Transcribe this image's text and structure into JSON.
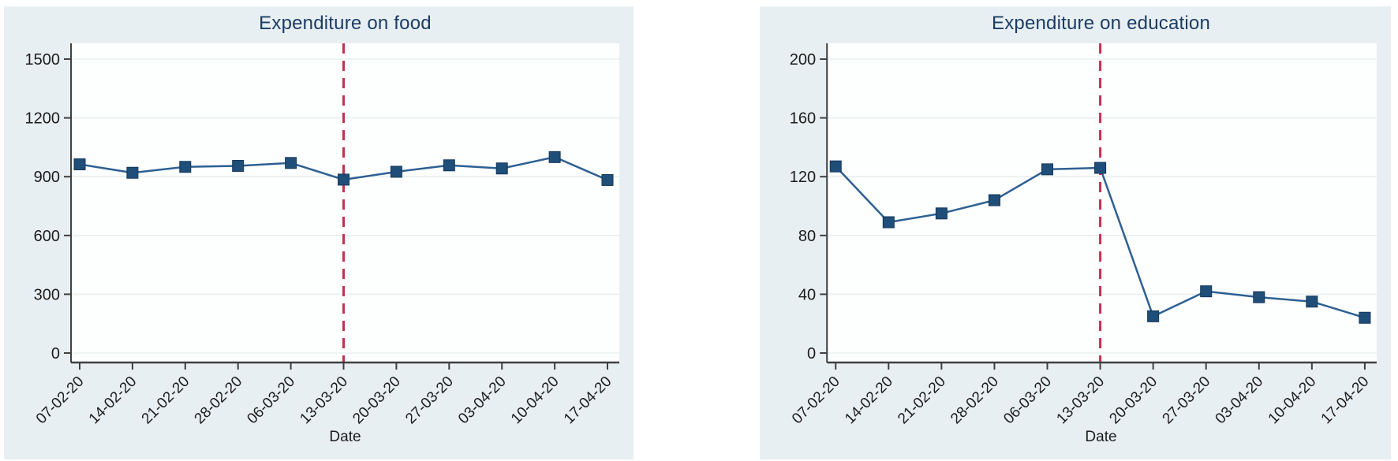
{
  "page": {
    "background": "#ffffff",
    "panel_background": "#e8eff2"
  },
  "style": {
    "line_color": "#2e6093",
    "marker_color": "#1f4e79",
    "marker_border_color": "#14375a",
    "reference_line_color": "#c13351",
    "title_color": "#1b3c63",
    "axis_color": "#3f3f3f",
    "grid_color": "#e9eff1",
    "tick_label_color": "#1c1c1c",
    "plot_background": "#fdfefe"
  },
  "chart_data": [
    {
      "type": "line",
      "title": "Expenditure on food",
      "xlabel": "Date",
      "ylabel": "",
      "categories": [
        "07-02-20",
        "14-02-20",
        "21-02-20",
        "28-02-20",
        "06-03-20",
        "13-03-20",
        "20-03-20",
        "27-03-20",
        "03-04-20",
        "10-04-20",
        "17-04-20"
      ],
      "values": [
        963,
        920,
        950,
        955,
        970,
        885,
        925,
        958,
        942,
        1000,
        883
      ],
      "yticks": [
        0,
        300,
        600,
        900,
        1200,
        1500
      ],
      "ylim": [
        0,
        1575
      ],
      "grid": true,
      "legend": "none",
      "marker": "square",
      "reference_date": "13-03-20",
      "reference_line_style": "dashed"
    },
    {
      "type": "line",
      "title": "Expenditure on education",
      "xlabel": "Date",
      "ylabel": "",
      "categories": [
        "07-02-20",
        "14-02-20",
        "21-02-20",
        "28-02-20",
        "06-03-20",
        "13-03-20",
        "20-03-20",
        "27-03-20",
        "03-04-20",
        "10-04-20",
        "17-04-20"
      ],
      "values": [
        127,
        89,
        95,
        104,
        125,
        126,
        25,
        42,
        38,
        35,
        24
      ],
      "yticks": [
        0,
        40,
        80,
        120,
        160,
        200
      ],
      "ylim": [
        0,
        210
      ],
      "grid": true,
      "legend": "none",
      "marker": "square",
      "reference_date": "13-03-20",
      "reference_line_style": "dashed"
    }
  ]
}
